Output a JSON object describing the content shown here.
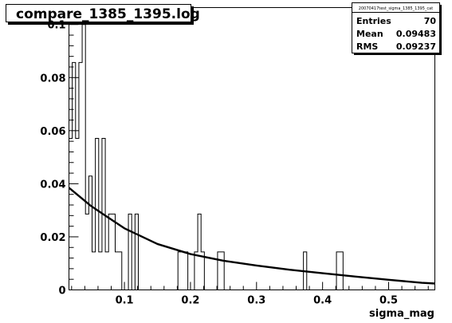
{
  "title": "compare_1385_1395.log",
  "stats": {
    "header": "20070417test_sigma_1385_1395_cat",
    "rows": [
      {
        "label": "Entries",
        "value": "70"
      },
      {
        "label": "Mean",
        "value": "0.09483"
      },
      {
        "label": "RMS",
        "value": "0.09237"
      }
    ]
  },
  "chart_data": {
    "type": "bar",
    "title": "compare_1385_1395.log",
    "xlabel": "sigma_mag",
    "ylabel": "",
    "xlim": [
      0.016,
      0.57
    ],
    "ylim": [
      0,
      0.1
    ],
    "grid": false,
    "x_ticks": [
      0.1,
      0.2,
      0.3,
      0.4,
      0.5
    ],
    "x_tick_labels": [
      "0.1",
      "0.2",
      "0.3",
      "0.4",
      "0.5"
    ],
    "y_ticks": [
      0,
      0.02,
      0.04,
      0.06,
      0.08,
      0.1
    ],
    "y_tick_labels": [
      "0",
      "0.02",
      "0.04",
      "0.06",
      "0.08",
      "0.1"
    ],
    "bin_width": 0.005,
    "histogram_x": [
      0.016,
      0.021,
      0.026,
      0.031,
      0.036,
      0.041,
      0.046,
      0.051,
      0.056,
      0.061,
      0.066,
      0.071,
      0.076,
      0.081,
      0.086,
      0.091,
      0.096,
      0.101,
      0.106,
      0.111,
      0.116,
      0.121,
      0.126,
      0.131,
      0.136,
      0.141,
      0.146,
      0.151,
      0.156,
      0.161,
      0.166,
      0.171,
      0.176,
      0.181,
      0.186,
      0.191,
      0.196,
      0.201,
      0.206,
      0.211,
      0.216,
      0.221,
      0.226,
      0.231,
      0.236,
      0.241,
      0.246,
      0.251,
      0.256,
      0.261,
      0.266,
      0.271,
      0.276,
      0.281,
      0.286,
      0.291,
      0.296,
      0.301,
      0.306,
      0.311,
      0.316,
      0.321,
      0.326,
      0.331,
      0.336,
      0.341,
      0.346,
      0.351,
      0.356,
      0.361,
      0.366,
      0.371,
      0.376,
      0.381,
      0.386,
      0.391,
      0.396,
      0.401,
      0.406,
      0.411,
      0.416,
      0.421,
      0.426,
      0.431,
      0.436,
      0.441,
      0.446,
      0.451,
      0.456,
      0.461,
      0.466,
      0.471,
      0.476,
      0.481,
      0.486,
      0.491,
      0.496,
      0.501,
      0.506,
      0.511,
      0.516,
      0.521,
      0.526,
      0.531,
      0.536,
      0.541,
      0.546,
      0.551,
      0.556,
      0.561
    ],
    "histogram_y": [
      0.0571,
      0.0857,
      0.0571,
      0.0857,
      0.1,
      0.0286,
      0.0429,
      0.0143,
      0.0571,
      0.0143,
      0.0571,
      0.0143,
      0.0286,
      0.0286,
      0.0143,
      0.0143,
      0,
      0,
      0.0286,
      0,
      0.0286,
      0,
      0,
      0,
      0,
      0,
      0,
      0,
      0,
      0,
      0,
      0,
      0,
      0.0143,
      0.0143,
      0.0143,
      0,
      0,
      0.0143,
      0.0286,
      0.0143,
      0,
      0,
      0,
      0,
      0.0143,
      0.0143,
      0,
      0,
      0,
      0,
      0,
      0,
      0,
      0,
      0,
      0,
      0,
      0,
      0,
      0,
      0,
      0,
      0,
      0,
      0,
      0,
      0,
      0,
      0,
      0,
      0.0143,
      0,
      0,
      0,
      0,
      0,
      0,
      0,
      0,
      0,
      0.0143,
      0.0143,
      0,
      0,
      0,
      0,
      0,
      0,
      0,
      0,
      0,
      0,
      0,
      0,
      0,
      0,
      0,
      0,
      0,
      0,
      0,
      0,
      0,
      0,
      0,
      0,
      0,
      0,
      0
    ],
    "fit_x": [
      0.016,
      0.05,
      0.1,
      0.15,
      0.2,
      0.25,
      0.3,
      0.35,
      0.4,
      0.45,
      0.5,
      0.55,
      0.57
    ],
    "fit_y": [
      0.0385,
      0.0315,
      0.0232,
      0.0173,
      0.0135,
      0.011,
      0.0092,
      0.0076,
      0.0063,
      0.005,
      0.0038,
      0.0027,
      0.0024
    ]
  }
}
